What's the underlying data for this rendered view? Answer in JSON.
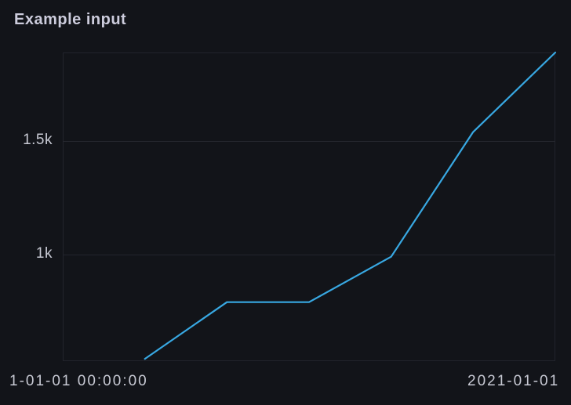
{
  "panel": {
    "title": "Example input"
  },
  "colors": {
    "background": "#121419",
    "title": "#CCCCDC",
    "tick_label": "#C7C9D3",
    "gridline": "#25272F",
    "plot_border": "#22242C",
    "line": "#38A8E2"
  },
  "chart_data": {
    "type": "line",
    "title": "Example input",
    "x_axis": {
      "type": "time",
      "tick_labels": [
        {
          "text": "1-01-01 00:00:00",
          "position": "left"
        },
        {
          "text": "2021-01-01",
          "position": "right"
        }
      ]
    },
    "y_axis": {
      "ticks": [
        {
          "label": "1.5k",
          "value": 1500
        },
        {
          "label": "1k",
          "value": 1000
        }
      ],
      "range": [
        530,
        1890
      ]
    },
    "series": [
      {
        "name": "",
        "color": "#38A8E2",
        "line_width": 2.2,
        "values": [
          540,
          790,
          790,
          990,
          1540,
          1890
        ]
      }
    ],
    "grid": "horizontal-only",
    "legend": "none"
  }
}
